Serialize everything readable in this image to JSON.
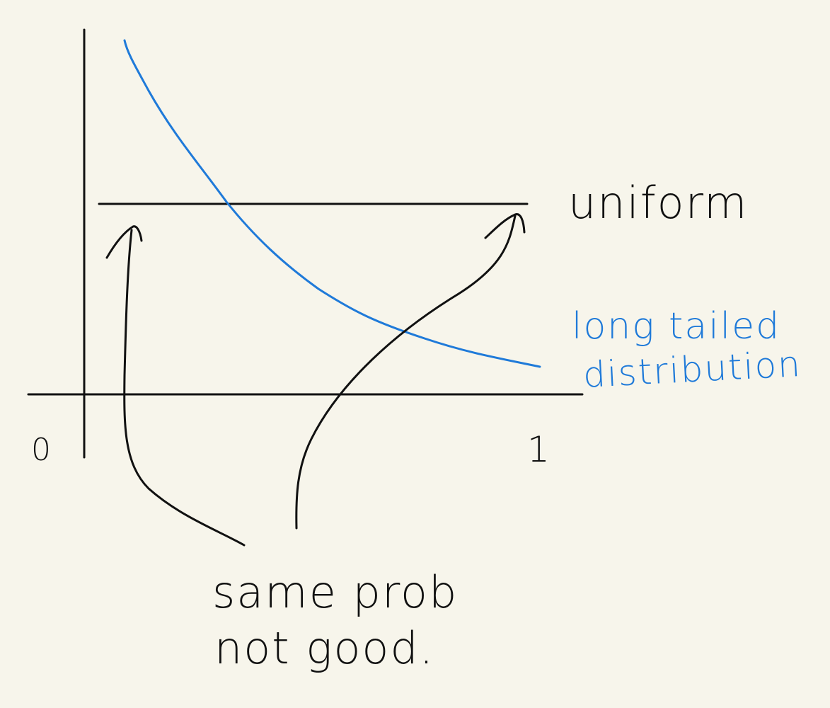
{
  "diagram": {
    "labels": {
      "origin": "0",
      "x_end": "1",
      "uniform": "uniform",
      "long_tailed_line1": "long tailed",
      "long_tailed_line2": "distribution",
      "note_line1": "same prob",
      "note_line2": "not good."
    },
    "colors": {
      "background": "#f7f5eb",
      "ink": "#111111",
      "long_tailed": "#1f7ad9"
    }
  }
}
